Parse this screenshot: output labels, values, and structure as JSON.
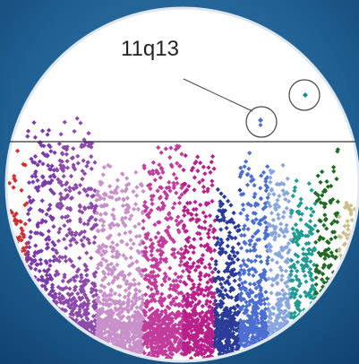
{
  "annotation": "11q13"
}
